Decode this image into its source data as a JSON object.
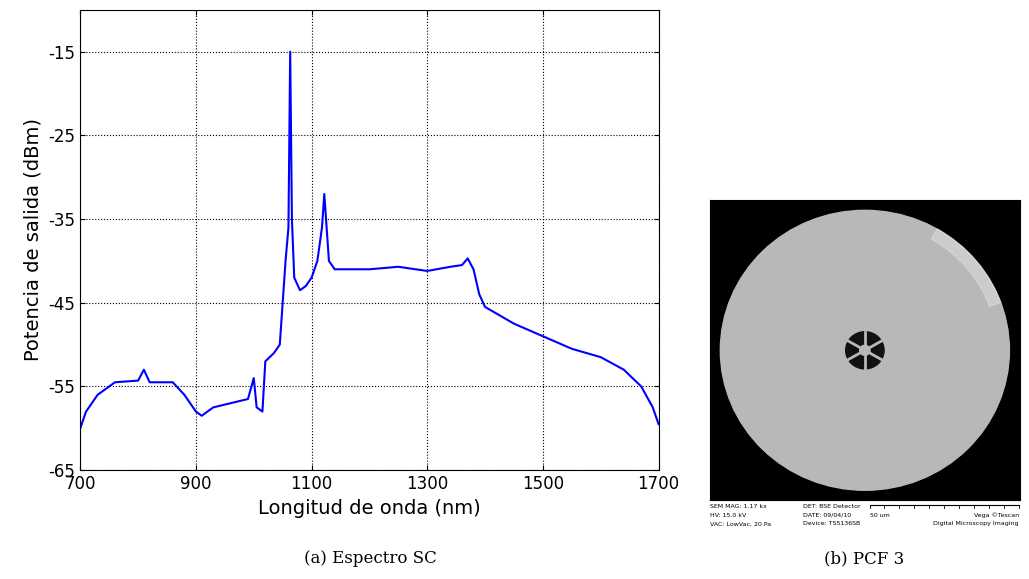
{
  "chart_data": {
    "type": "line",
    "x": [
      700,
      710,
      730,
      760,
      800,
      810,
      820,
      860,
      880,
      900,
      910,
      930,
      960,
      990,
      1000,
      1005,
      1015,
      1020,
      1035,
      1045,
      1050,
      1055,
      1060,
      1063,
      1066,
      1070,
      1080,
      1090,
      1100,
      1110,
      1118,
      1122,
      1126,
      1130,
      1140,
      1200,
      1250,
      1300,
      1340,
      1360,
      1370,
      1380,
      1390,
      1400,
      1450,
      1500,
      1550,
      1600,
      1640,
      1670,
      1690,
      1700
    ],
    "values": [
      -60,
      -58,
      -56,
      -54.5,
      -54.3,
      -53,
      -54.5,
      -54.5,
      -56,
      -58,
      -58.5,
      -57.5,
      -57,
      -56.5,
      -54,
      -57.5,
      -58,
      -52,
      -51,
      -50,
      -45,
      -40,
      -36,
      -15,
      -35,
      -42,
      -43.5,
      -43,
      -42,
      -40,
      -36,
      -32,
      -36,
      -40,
      -41,
      -41,
      -40.7,
      -41.2,
      -40.7,
      -40.5,
      -39.7,
      -41,
      -44,
      -45.5,
      -47.5,
      -49,
      -50.5,
      -51.5,
      -53,
      -55,
      -57.5,
      -59.5
    ],
    "color": "#0000ff",
    "x_label": "Longitud de onda (nm)",
    "y_label": "Potencia de salida (dBm)",
    "xlim": [
      700,
      1700
    ],
    "ylim": [
      -65,
      -10
    ],
    "xticks": [
      700,
      900,
      1100,
      1300,
      1500,
      1700
    ],
    "yticks": [
      -65,
      -55,
      -45,
      -35,
      -25,
      -15
    ],
    "grid": true
  },
  "captions": [
    "(a) Espectro SC",
    "(b) PCF 3"
  ],
  "sem_image": {
    "info": [
      [
        "SEM MAG: 1.17 kx",
        "HV: 15.0 kV",
        "VAC: LowVac, 20 Pa"
      ],
      [
        "DET: BSE Detector",
        "DATE: 09/04/10",
        "Device: TS5136SB"
      ]
    ],
    "scale_bar": "50 um",
    "brand": "Vega ©Tescan",
    "software": "Digital Microscopy Imaging"
  }
}
